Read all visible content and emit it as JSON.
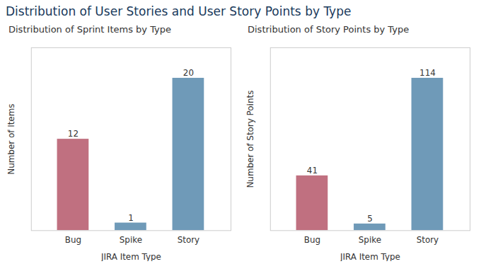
{
  "title": "Distribution of User Stories and User Story Points by Type",
  "chart_data": [
    {
      "type": "bar",
      "title": "Distribution of Sprint Items by Type",
      "categories": [
        "Bug",
        "Spike",
        "Story"
      ],
      "values": [
        12,
        1,
        20
      ],
      "colors": [
        "#c07080",
        "#6f9ab8",
        "#6f9ab8"
      ],
      "xlabel": "JIRA Item Type",
      "ylabel": "Number of Items",
      "ylim": [
        0,
        24
      ],
      "yticks": [],
      "grid": false,
      "data_labels": true,
      "tick_labels": "x"
    },
    {
      "type": "bar",
      "title": "Distribution of Story Points by Type",
      "categories": [
        "Bug",
        "Spike",
        "Story"
      ],
      "values": [
        41,
        5,
        114
      ],
      "colors": [
        "#c07080",
        "#6f9ab8",
        "#6f9ab8"
      ],
      "xlabel": "JIRA Item Type",
      "ylabel": "Number of Story Points",
      "ylim": [
        0,
        136.8
      ],
      "yticks": [],
      "grid": false,
      "data_labels": true,
      "tick_labels": "x"
    }
  ]
}
